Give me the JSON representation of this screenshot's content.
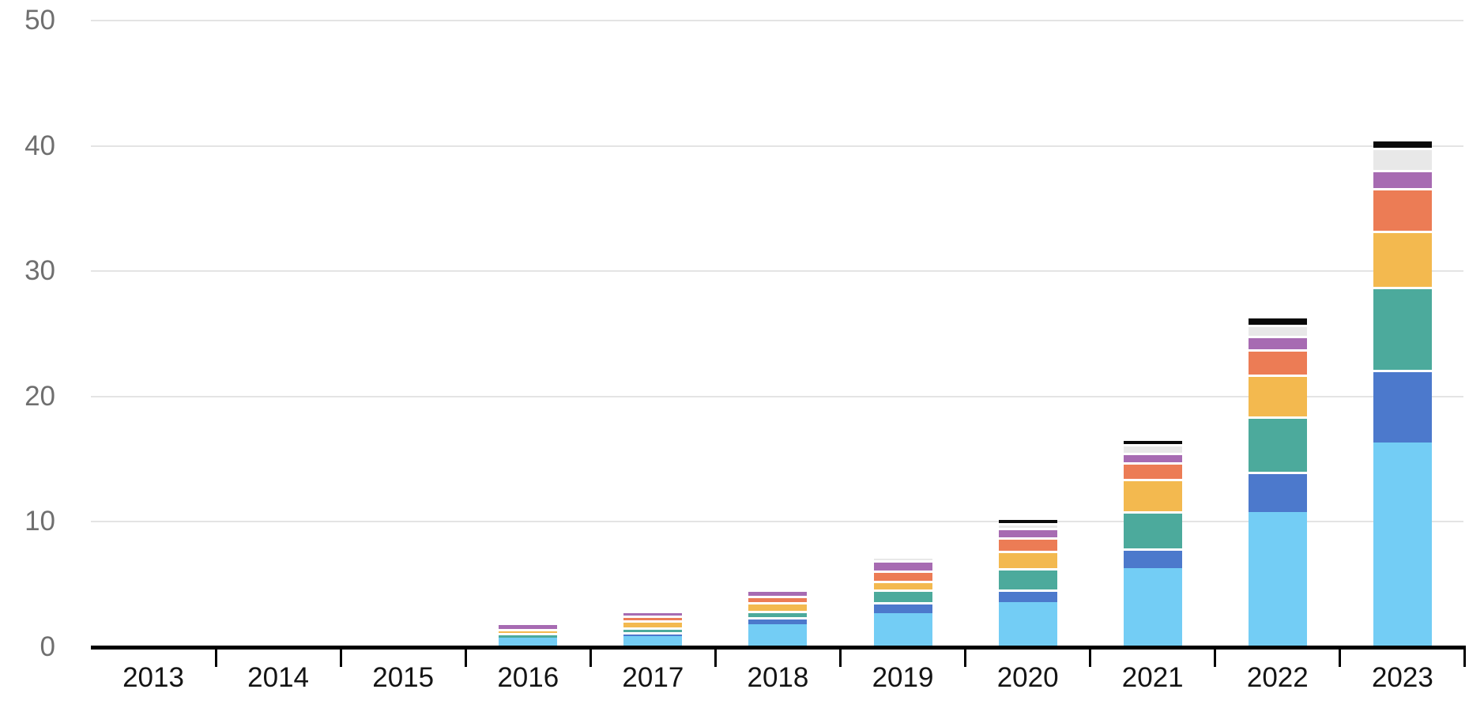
{
  "chart_data": {
    "type": "bar",
    "stacked": true,
    "title": "",
    "xlabel": "",
    "ylabel": "",
    "categories": [
      "2013",
      "2014",
      "2015",
      "2016",
      "2017",
      "2018",
      "2019",
      "2020",
      "2021",
      "2022",
      "2023"
    ],
    "series": [
      {
        "name": "sky-blue",
        "color": "#73CDF5",
        "values": [
          0,
          0,
          0,
          0.6,
          0.75,
          1.7,
          2.6,
          3.45,
          6.2,
          10.65,
          16.2
        ]
      },
      {
        "name": "royal-blue",
        "color": "#4C79CC",
        "values": [
          0,
          0,
          0,
          0.0,
          0.35,
          0.55,
          0.9,
          1.05,
          1.55,
          3.2,
          5.8
        ]
      },
      {
        "name": "teal",
        "color": "#4CAA9C",
        "values": [
          0,
          0,
          0,
          0.4,
          0.35,
          0.55,
          1.0,
          1.7,
          2.95,
          4.45,
          6.6
        ]
      },
      {
        "name": "amber",
        "color": "#F3B94F",
        "values": [
          0,
          0,
          0,
          0.35,
          0.55,
          0.65,
          0.7,
          1.4,
          2.6,
          3.3,
          4.5
        ]
      },
      {
        "name": "orange",
        "color": "#EC7C55",
        "values": [
          0,
          0,
          0,
          0.0,
          0.4,
          0.55,
          0.8,
          1.05,
          1.35,
          2.05,
          3.4
        ]
      },
      {
        "name": "purple",
        "color": "#A76BB2",
        "values": [
          0,
          0,
          0,
          0.5,
          0.4,
          0.5,
          0.8,
          0.75,
          0.75,
          1.05,
          1.45
        ]
      },
      {
        "name": "light-gray",
        "color": "#E8E8E8",
        "values": [
          0,
          0,
          0,
          0.0,
          0.0,
          0.0,
          0.3,
          0.4,
          0.65,
          0.9,
          1.75
        ]
      },
      {
        "name": "black",
        "color": "#0A0A0A",
        "values": [
          0,
          0,
          0,
          0.0,
          0.0,
          0.0,
          0.0,
          0.4,
          0.45,
          0.7,
          0.7
        ]
      }
    ],
    "totals": [
      0,
      0,
      0,
      1.85,
      2.8,
      4.5,
      7.1,
      10.2,
      16.5,
      26.3,
      40.4
    ],
    "ylim": [
      0,
      50
    ],
    "yticks": [
      0,
      10,
      20,
      30,
      40,
      50
    ],
    "ytick_labels": [
      "0",
      "10",
      "20",
      "30",
      "40",
      "50"
    ],
    "grid": true,
    "legend": "none"
  },
  "colors": {
    "background": "#FFFFFF",
    "gridline": "#E4E4E4",
    "axis_line": "#000000",
    "y_label_text": "#6F6F6F",
    "x_label_text": "#141414",
    "segment_gap": "#FFFFFF"
  }
}
